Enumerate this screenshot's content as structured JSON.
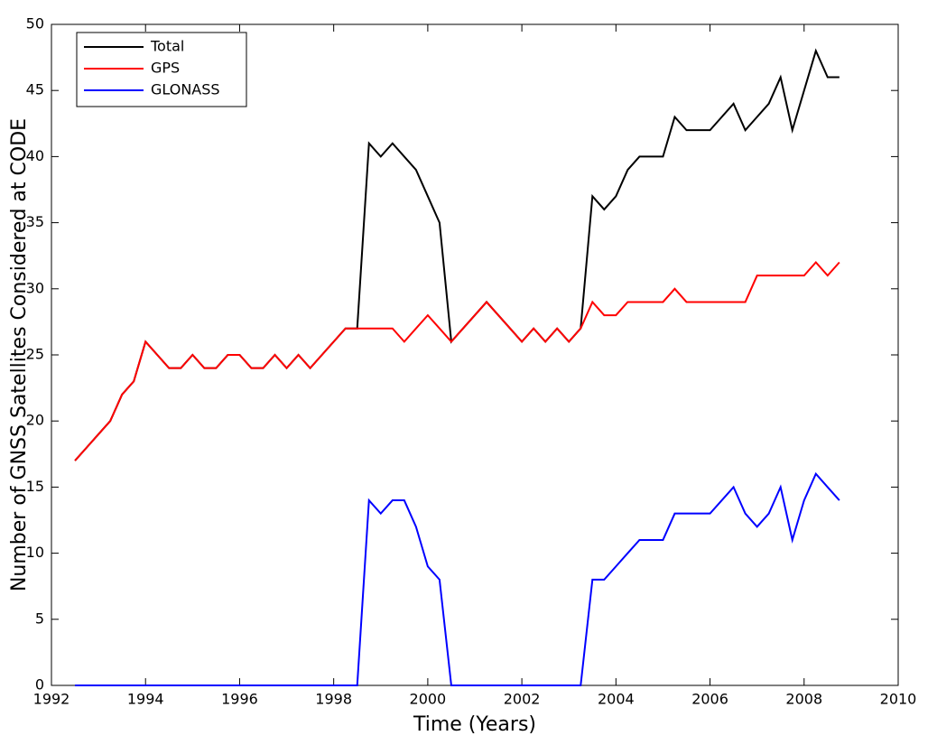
{
  "chart_data": {
    "type": "line",
    "xlabel": "Time (Years)",
    "ylabel": "Number of GNSS Satellites Considered at CODE",
    "x": [
      1992.5,
      1992.75,
      1993,
      1993.25,
      1993.5,
      1993.75,
      1994,
      1994.25,
      1994.5,
      1994.75,
      1995,
      1995.25,
      1995.5,
      1995.75,
      1996,
      1996.25,
      1996.5,
      1996.75,
      1997,
      1997.25,
      1997.5,
      1997.75,
      1998,
      1998.25,
      1998.5,
      1998.75,
      1999,
      1999.25,
      1999.5,
      1999.75,
      2000,
      2000.25,
      2000.5,
      2000.75,
      2001,
      2001.25,
      2001.5,
      2001.75,
      2002,
      2002.25,
      2002.5,
      2002.75,
      2003,
      2003.25,
      2003.5,
      2003.75,
      2004,
      2004.25,
      2004.5,
      2004.75,
      2005,
      2005.25,
      2005.5,
      2005.75,
      2006,
      2006.25,
      2006.5,
      2006.75,
      2007,
      2007.25,
      2007.5,
      2007.75,
      2008,
      2008.25,
      2008.5,
      2008.75
    ],
    "series": [
      {
        "name": "Total",
        "color": "#000000",
        "values": [
          17,
          18,
          19,
          20,
          22,
          23,
          26,
          25,
          24,
          24,
          25,
          24,
          24,
          25,
          25,
          24,
          24,
          25,
          24,
          25,
          24,
          25,
          26,
          27,
          27,
          41,
          40,
          41,
          40,
          39,
          37,
          35,
          26,
          27,
          28,
          29,
          28,
          27,
          26,
          27,
          26,
          27,
          26,
          27,
          37,
          36,
          37,
          39,
          40,
          40,
          40,
          43,
          42,
          42,
          42,
          43,
          44,
          42,
          43,
          44,
          46,
          42,
          45,
          48,
          46,
          46
        ]
      },
      {
        "name": "GPS",
        "color": "#ff0000",
        "values": [
          17,
          18,
          19,
          20,
          22,
          23,
          26,
          25,
          24,
          24,
          25,
          24,
          24,
          25,
          25,
          24,
          24,
          25,
          24,
          25,
          24,
          25,
          26,
          27,
          27,
          27,
          27,
          27,
          26,
          27,
          28,
          27,
          26,
          27,
          28,
          29,
          28,
          27,
          26,
          27,
          26,
          27,
          26,
          27,
          29,
          28,
          28,
          29,
          29,
          29,
          29,
          30,
          29,
          29,
          29,
          29,
          29,
          29,
          31,
          31,
          31,
          31,
          31,
          32,
          31,
          32
        ]
      },
      {
        "name": "GLONASS",
        "color": "#0000ff",
        "values": [
          0,
          0,
          0,
          0,
          0,
          0,
          0,
          0,
          0,
          0,
          0,
          0,
          0,
          0,
          0,
          0,
          0,
          0,
          0,
          0,
          0,
          0,
          0,
          0,
          0,
          14,
          13,
          14,
          14,
          12,
          9,
          8,
          0,
          0,
          0,
          0,
          0,
          0,
          0,
          0,
          0,
          0,
          0,
          0,
          8,
          8,
          9,
          10,
          11,
          11,
          11,
          13,
          13,
          13,
          13,
          14,
          15,
          13,
          12,
          13,
          15,
          11,
          14,
          16,
          15,
          14
        ]
      }
    ],
    "xlim": [
      1992,
      2010
    ],
    "xticks": [
      1992,
      1994,
      1996,
      1998,
      2000,
      2002,
      2004,
      2006,
      2008,
      2010
    ],
    "ylim": [
      0,
      50
    ],
    "yticks": [
      0,
      5,
      10,
      15,
      20,
      25,
      30,
      35,
      40,
      45,
      50
    ],
    "grid": false,
    "legend": "upper left"
  }
}
